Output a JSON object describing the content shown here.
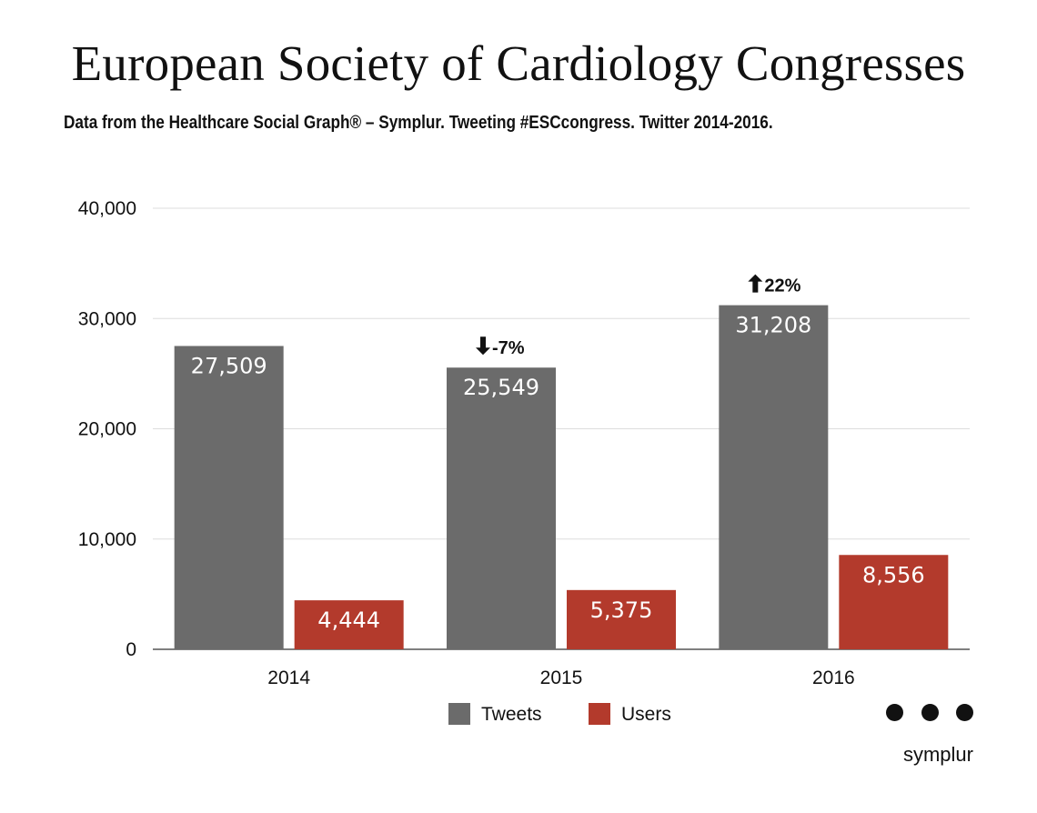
{
  "header": {
    "title": "European Society of Cardiology Congresses",
    "subtitle": "Data from the Healthcare Social Graph® – Symplur. Tweeting #ESCcongress. Twitter 2014-2016."
  },
  "brand": {
    "name": "symplur"
  },
  "colors": {
    "tweets": "#6b6b6b",
    "users": "#b33a2c",
    "grid": "#dddddd",
    "axis": "#555555"
  },
  "chart_data": {
    "type": "bar",
    "title": "European Society of Cardiology Congresses",
    "subtitle": "Data from the Healthcare Social Graph® – Symplur. Tweeting #ESCcongress. Twitter 2014-2016.",
    "categories": [
      "2014",
      "2015",
      "2016"
    ],
    "series": [
      {
        "name": "Tweets",
        "values": [
          27509,
          25549,
          31208
        ],
        "labels": [
          "27,509",
          "25,549",
          "31,208"
        ]
      },
      {
        "name": "Users",
        "values": [
          4444,
          5375,
          8556
        ],
        "labels": [
          "4,444",
          "5,375",
          "8,556"
        ]
      }
    ],
    "ylim": [
      0,
      40000
    ],
    "yticks": [
      0,
      10000,
      20000,
      30000,
      40000
    ],
    "ytick_labels": [
      "0",
      "10,000",
      "20,000",
      "30,000",
      "40,000"
    ],
    "xlabel": "",
    "ylabel": "",
    "grid": true,
    "legend": "bottom-center",
    "annotations": [
      {
        "category": "2015",
        "series": "Tweets",
        "direction": "down",
        "text": "-7%"
      },
      {
        "category": "2016",
        "series": "Tweets",
        "direction": "up",
        "text": "22%"
      }
    ]
  }
}
